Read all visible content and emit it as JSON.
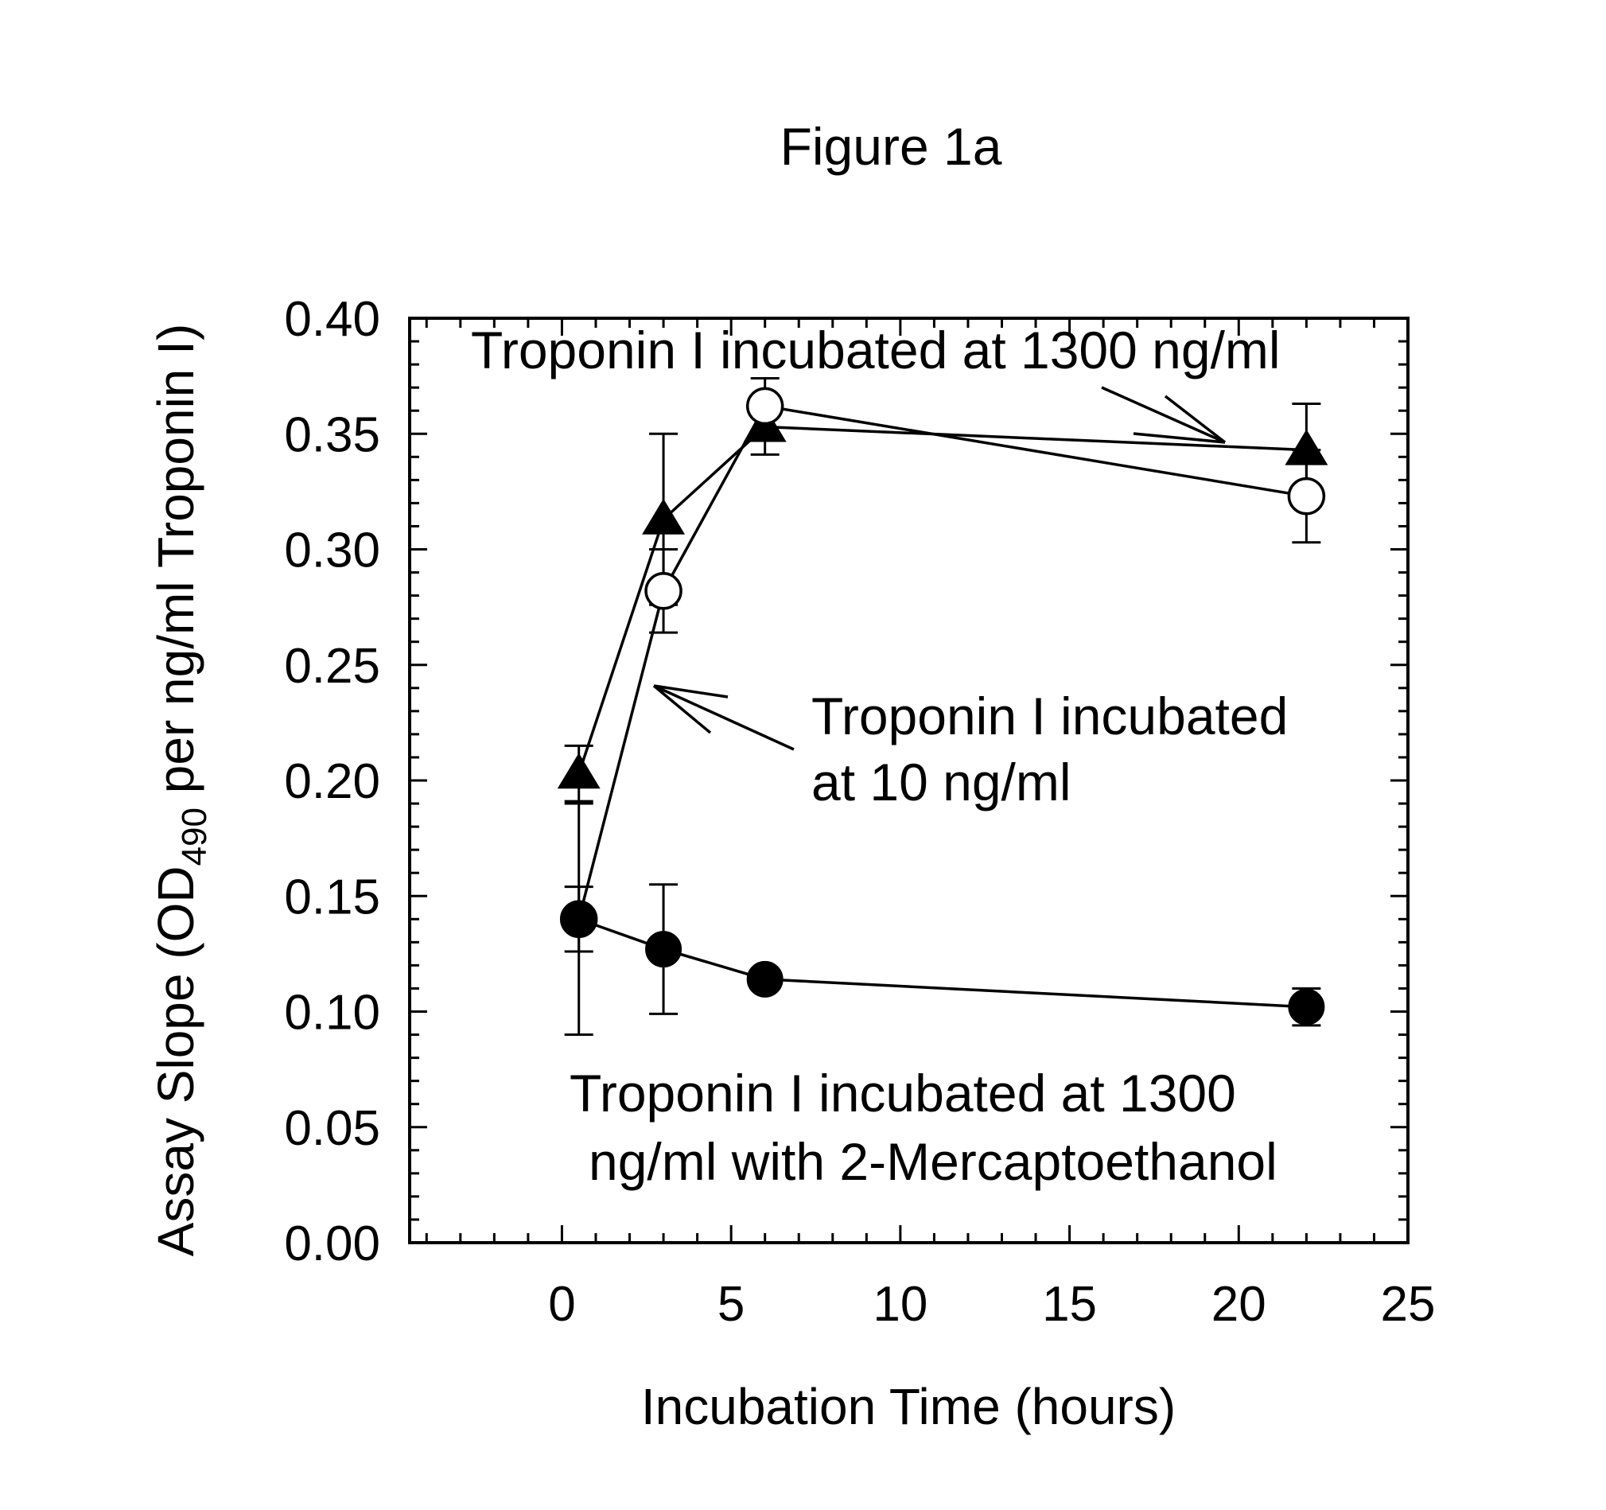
{
  "figure": {
    "title": "Figure 1a"
  },
  "chart_data": {
    "type": "scatter",
    "xlabel": "Incubation Time (hours)",
    "ylabel": {
      "prefix": "Assay Slope (OD",
      "subscript": "490",
      "suffix": " per ng/ml Troponin I)"
    },
    "xlim": [
      -4.5,
      25
    ],
    "ylim": [
      0,
      0.4
    ],
    "x_ticks": [
      0,
      5,
      10,
      15,
      20,
      25
    ],
    "x_tick_labels": [
      "0",
      "5",
      "10",
      "15",
      "20",
      "25"
    ],
    "y_ticks": [
      0,
      0.05,
      0.1,
      0.15,
      0.2,
      0.25,
      0.3,
      0.35,
      0.4
    ],
    "y_tick_labels": [
      "0.00",
      "0.05",
      "0.10",
      "0.15",
      "0.20",
      "0.25",
      "0.30",
      "0.35",
      "0.40"
    ],
    "grid": false,
    "legend": "none",
    "series": [
      {
        "marker": "filled-triangle",
        "x": [
          0.5,
          3,
          6,
          22
        ],
        "y": [
          0.203,
          0.313,
          0.353,
          0.343
        ],
        "err": [
          0.012,
          0.037,
          0.012,
          0.02
        ]
      },
      {
        "marker": "open-circle",
        "x": [
          0.5,
          3,
          6,
          22
        ],
        "y": [
          0.14,
          0.282,
          0.362,
          0.323
        ],
        "err": [
          0.05,
          0.018,
          0.012,
          0.02
        ]
      },
      {
        "marker": "filled-circle",
        "x": [
          0.5,
          3,
          6,
          22
        ],
        "y": [
          0.14,
          0.127,
          0.114,
          0.102
        ],
        "err": [
          0.014,
          0.028,
          0.004,
          0.008
        ]
      }
    ],
    "annotations": [
      {
        "lines": [
          "Troponin I incubated at 1300 ng/ml"
        ]
      },
      {
        "lines": [
          "Troponin I incubated",
          "at 10 ng/ml"
        ]
      },
      {
        "lines": [
          "Troponin I incubated at 1300",
          "ng/ml with 2-Mercaptoethanol"
        ]
      }
    ]
  }
}
